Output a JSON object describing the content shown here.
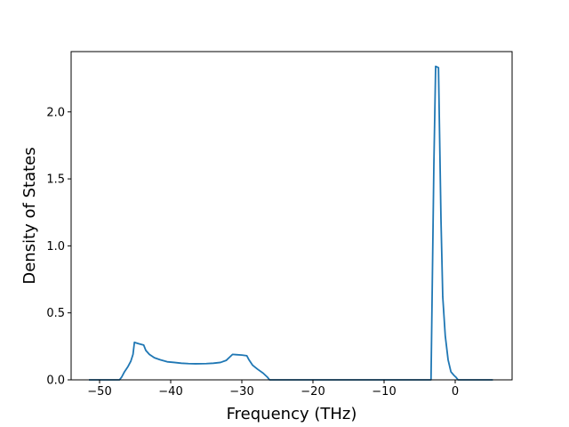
{
  "chart_data": {
    "type": "line",
    "title": "",
    "xlabel": "Frequency (THz)",
    "ylabel": "Density of States",
    "xlim": [
      -54.0,
      8.0
    ],
    "ylim": [
      0.0,
      2.45
    ],
    "grid": false,
    "legend": "none",
    "x_ticks": [
      -50,
      -40,
      -30,
      -20,
      -10,
      0
    ],
    "x_tick_labels": [
      "−50",
      "−40",
      "−30",
      "−20",
      "−10",
      "0"
    ],
    "y_ticks": [
      0.0,
      0.5,
      1.0,
      1.5,
      2.0
    ],
    "y_tick_labels": [
      "0.0",
      "0.5",
      "1.0",
      "1.5",
      "2.0"
    ],
    "series": [
      {
        "color": "#1f77b4",
        "points": [
          [
            -51.5,
            0.0
          ],
          [
            -47.2,
            0.0
          ],
          [
            -46.9,
            0.02
          ],
          [
            -46.5,
            0.06
          ],
          [
            -46.0,
            0.1
          ],
          [
            -45.6,
            0.14
          ],
          [
            -45.3,
            0.19
          ],
          [
            -45.1,
            0.28
          ],
          [
            -44.5,
            0.27
          ],
          [
            -43.8,
            0.26
          ],
          [
            -43.5,
            0.22
          ],
          [
            -43.0,
            0.19
          ],
          [
            -42.3,
            0.165
          ],
          [
            -41.5,
            0.15
          ],
          [
            -40.5,
            0.135
          ],
          [
            -39.5,
            0.13
          ],
          [
            -38.5,
            0.124
          ],
          [
            -37.5,
            0.121
          ],
          [
            -36.5,
            0.12
          ],
          [
            -35.0,
            0.121
          ],
          [
            -34.0,
            0.124
          ],
          [
            -33.0,
            0.13
          ],
          [
            -32.2,
            0.145
          ],
          [
            -31.7,
            0.17
          ],
          [
            -31.3,
            0.19
          ],
          [
            -30.8,
            0.188
          ],
          [
            -30.0,
            0.185
          ],
          [
            -29.3,
            0.18
          ],
          [
            -29.0,
            0.15
          ],
          [
            -28.5,
            0.11
          ],
          [
            -27.8,
            0.08
          ],
          [
            -27.0,
            0.05
          ],
          [
            -26.4,
            0.02
          ],
          [
            -26.1,
            0.0
          ],
          [
            -3.4,
            0.0
          ],
          [
            -3.0,
            1.6
          ],
          [
            -2.75,
            2.34
          ],
          [
            -2.35,
            2.33
          ],
          [
            -2.0,
            1.2
          ],
          [
            -1.75,
            0.62
          ],
          [
            -1.4,
            0.33
          ],
          [
            -1.0,
            0.15
          ],
          [
            -0.6,
            0.06
          ],
          [
            -0.2,
            0.035
          ],
          [
            0.1,
            0.02
          ],
          [
            0.4,
            0.0
          ],
          [
            5.3,
            0.0
          ]
        ]
      }
    ]
  }
}
